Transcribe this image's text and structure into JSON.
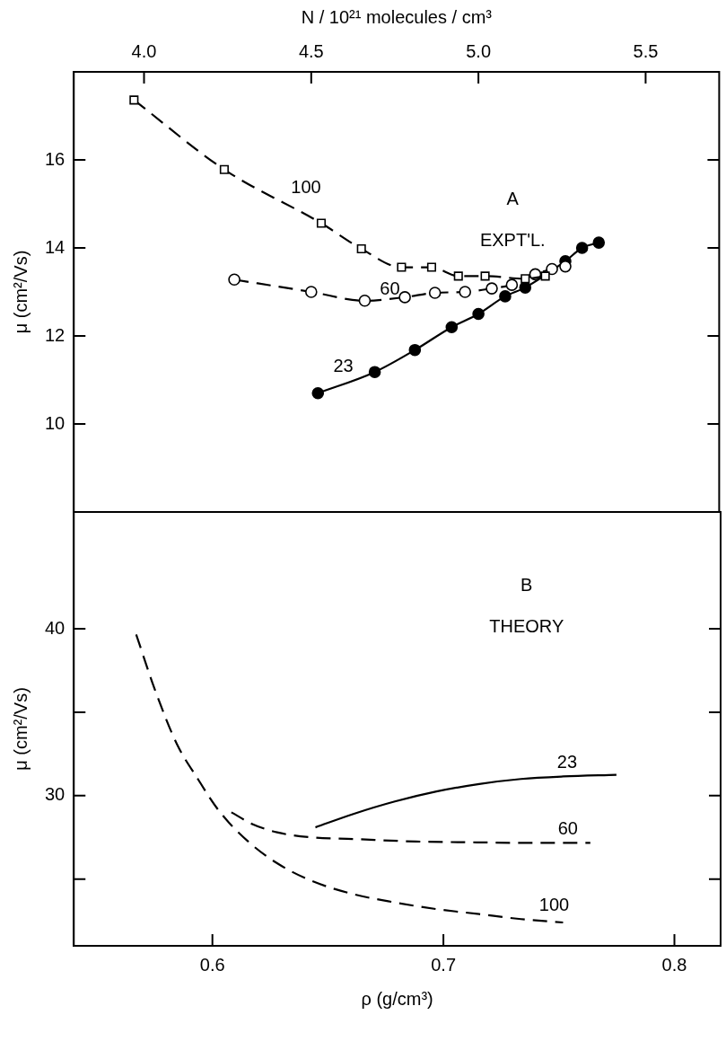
{
  "chart_data": [
    {
      "type": "line",
      "ylabel": "μ (cm²/Vs)",
      "x2label": "N / 10²¹ molecules / cm³",
      "xlim": [
        0.54,
        0.82
      ],
      "x2lim": [
        3.79,
        5.72
      ],
      "x2ticks": [
        {
          "value": 4,
          "label": "4.0"
        },
        4.5,
        {
          "value": 5,
          "label": "5.0"
        },
        5.5
      ],
      "ylim": [
        8,
        18
      ],
      "yticks": [
        10,
        12,
        14,
        16
      ],
      "tick_labels": "y",
      "grid": false,
      "legend": false,
      "annotations": [
        "A",
        "EXPT'L."
      ],
      "series": [
        {
          "name": "100",
          "color": "#000000",
          "axis": "x2",
          "marker": "square",
          "line_style": "dashed",
          "x": [
            3.97,
            4.24,
            4.53,
            4.65,
            4.77,
            4.86,
            4.94,
            5.02,
            5.14,
            5.2
          ],
          "values": [
            17.36,
            15.78,
            14.56,
            13.98,
            13.56,
            13.56,
            13.36,
            13.36,
            13.3,
            13.36
          ]
        },
        {
          "name": "60",
          "color": "#000000",
          "axis": "x2",
          "marker": "circle",
          "line_style": "dashed",
          "x": [
            4.27,
            4.5,
            4.66,
            4.78,
            4.87,
            4.96,
            5.04,
            5.1,
            5.17,
            5.22,
            5.26
          ],
          "values": [
            13.28,
            13.0,
            12.8,
            12.88,
            12.98,
            13.0,
            13.08,
            13.16,
            13.4,
            13.52,
            13.58
          ]
        },
        {
          "name": "23",
          "color": "#000000",
          "axis": "x2",
          "marker": "circle",
          "line_style": "solid",
          "x": [
            4.52,
            4.69,
            4.81,
            4.92,
            5.0,
            5.08,
            5.14,
            5.26,
            5.31,
            5.36
          ],
          "values": [
            10.7,
            11.18,
            11.68,
            12.2,
            12.5,
            12.9,
            13.1,
            13.7,
            14.0,
            14.12
          ]
        }
      ]
    },
    {
      "type": "line",
      "ylabel": "μ (cm²/Vs)",
      "xlabel": "ρ (g/cm³)",
      "xlim": [
        0.54,
        0.82
      ],
      "xticks": [
        0.6,
        0.7,
        0.8
      ],
      "ylim": [
        21,
        47
      ],
      "yticks": [
        {
          "value": 25,
          "label": null
        },
        30,
        {
          "value": 35,
          "label": null
        },
        40
      ],
      "grid": false,
      "legend": false,
      "marker": "none",
      "annotations": [
        "B",
        "THEORY"
      ],
      "series": [
        {
          "name": "23",
          "color": "#000000",
          "line_style": "solid",
          "x": [
            0.6446,
            0.661,
            0.679,
            0.697,
            0.7155,
            0.7336,
            0.7518,
            0.7749
          ],
          "values": [
            28.1,
            28.9,
            29.65,
            30.25,
            30.7,
            31.0,
            31.15,
            31.25
          ]
        },
        {
          "name": "60",
          "color": "#000000",
          "line_style": "dashed",
          "x": [
            0.6082,
            0.6173,
            0.628,
            0.6428,
            0.661,
            0.6882,
            0.7155,
            0.7336,
            0.7636
          ],
          "values": [
            29.0,
            28.3,
            27.8,
            27.5,
            27.4,
            27.25,
            27.2,
            27.17,
            27.17
          ]
        },
        {
          "name": "100",
          "color": "#000000",
          "line_style": "dashed",
          "x": [
            0.567,
            0.5755,
            0.5846,
            0.5937,
            0.6028,
            0.6155,
            0.628,
            0.6428,
            0.661,
            0.679,
            0.697,
            0.7155,
            0.7336,
            0.7518
          ],
          "values": [
            39.66,
            36.2,
            33.1,
            31.0,
            29.1,
            27.25,
            25.95,
            24.9,
            24.1,
            23.6,
            23.2,
            22.9,
            22.6,
            22.4
          ]
        }
      ]
    }
  ]
}
